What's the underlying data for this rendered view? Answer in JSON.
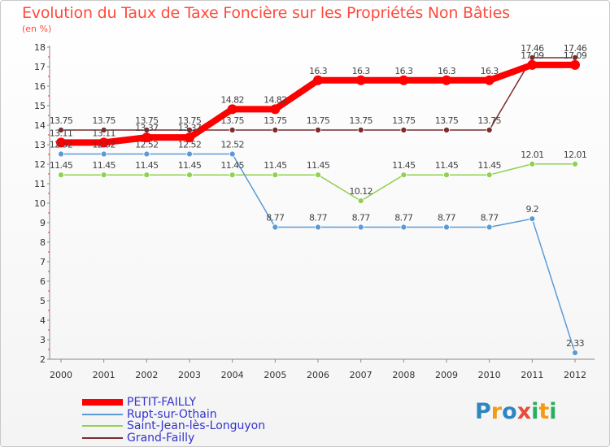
{
  "chart_data": {
    "type": "line",
    "title": "Evolution du Taux de Taxe Foncière sur les Propriétés Non Bâties",
    "subtitle": "(en %)",
    "xlabel": "",
    "ylabel": "",
    "ylim": [
      2,
      18
    ],
    "y_ticks": [
      "2",
      "3",
      "4",
      "5",
      "6",
      "7",
      "8",
      "9",
      "10",
      "11",
      "12",
      "13",
      "14",
      "15",
      "16",
      "17",
      "18"
    ],
    "categories": [
      "2000",
      "2001",
      "2002",
      "2003",
      "2004",
      "2005",
      "2006",
      "2007",
      "2008",
      "2009",
      "2010",
      "2011",
      "2012"
    ],
    "grid": false,
    "legend_position": "bottom-left",
    "series": [
      {
        "name": "PETIT-FAILLY",
        "color": "#ff0000",
        "values": [
          13.11,
          13.11,
          13.37,
          13.37,
          14.82,
          14.82,
          16.3,
          16.3,
          16.3,
          16.3,
          16.3,
          17.09,
          17.09
        ],
        "labels": [
          "13.11",
          "13.11",
          "13.37",
          "13.37",
          "14.82",
          "14.82",
          "16.3",
          "16.3",
          "16.3",
          "16.3",
          "16.3",
          "17.09",
          "17.09"
        ]
      },
      {
        "name": "Rupt-sur-Othain",
        "color": "#5b9bd5",
        "values": [
          12.52,
          12.52,
          12.52,
          12.52,
          12.52,
          8.77,
          8.77,
          8.77,
          8.77,
          8.77,
          8.77,
          9.2,
          2.33
        ],
        "labels": [
          "12.52",
          "12.52",
          "12.52",
          "12.52",
          "12.52",
          "8.77",
          "8.77",
          "8.77",
          "8.77",
          "8.77",
          "8.77",
          "9.2",
          "2.33"
        ]
      },
      {
        "name": "Saint-Jean-lès-Longuyon",
        "color": "#92d050",
        "values": [
          11.45,
          11.45,
          11.45,
          11.45,
          11.45,
          11.45,
          11.45,
          10.12,
          11.45,
          11.45,
          11.45,
          12.01,
          12.01
        ],
        "labels": [
          "11.45",
          "11.45",
          "11.45",
          "11.45",
          "11.45",
          "11.45",
          "11.45",
          "10.12",
          "11.45",
          "11.45",
          "11.45",
          "12.01",
          "12.01"
        ]
      },
      {
        "name": "Grand-Failly",
        "color": "#7b2c2c",
        "values": [
          13.75,
          13.75,
          13.75,
          13.75,
          13.75,
          13.75,
          13.75,
          13.75,
          13.75,
          13.75,
          13.75,
          17.46,
          17.46
        ],
        "labels": [
          "13.75",
          "13.75",
          "13.75",
          "13.75",
          "13.75",
          "13.75",
          "13.75",
          "13.75",
          "13.75",
          "13.75",
          "13.75",
          "17.46",
          "17.46"
        ]
      }
    ]
  },
  "brand": {
    "letters": [
      "P",
      "r",
      "o",
      "x",
      "i",
      "t",
      "i"
    ],
    "colors": [
      "#2e86c1",
      "#f39c12",
      "#2e86c1",
      "#e74c3c",
      "#27ae60",
      "#f39c12",
      "#27ae60"
    ]
  }
}
